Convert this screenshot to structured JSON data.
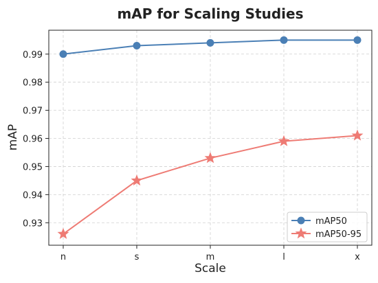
{
  "chart_data": {
    "type": "line",
    "title": "mAP for Scaling Studies",
    "xlabel": "Scale",
    "ylabel": "mAP",
    "categories": [
      "n",
      "s",
      "m",
      "l",
      "x"
    ],
    "ylim": [
      0.922,
      0.9985
    ],
    "yticks": [
      "0.93",
      "0.94",
      "0.95",
      "0.96",
      "0.97",
      "0.98",
      "0.99"
    ],
    "grid": true,
    "legend_position": "lower-right",
    "series": [
      {
        "name": "mAP50",
        "values": [
          0.99,
          0.993,
          0.994,
          0.995,
          0.995
        ],
        "color": "#4a7fb5",
        "marker": "circle"
      },
      {
        "name": "mAP50-95",
        "values": [
          0.926,
          0.945,
          0.953,
          0.959,
          0.961
        ],
        "color": "#ee7b74",
        "marker": "star"
      }
    ]
  }
}
